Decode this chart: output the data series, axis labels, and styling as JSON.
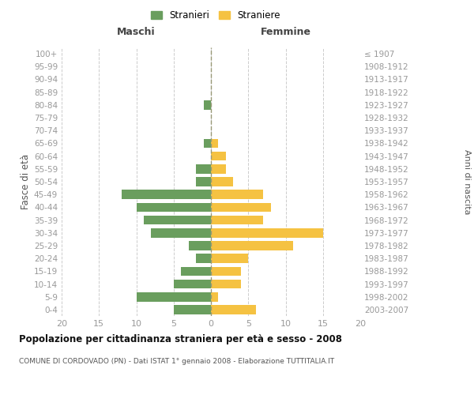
{
  "age_groups": [
    "0-4",
    "5-9",
    "10-14",
    "15-19",
    "20-24",
    "25-29",
    "30-34",
    "35-39",
    "40-44",
    "45-49",
    "50-54",
    "55-59",
    "60-64",
    "65-69",
    "70-74",
    "75-79",
    "80-84",
    "85-89",
    "90-94",
    "95-99",
    "100+"
  ],
  "birth_years": [
    "2003-2007",
    "1998-2002",
    "1993-1997",
    "1988-1992",
    "1983-1987",
    "1978-1982",
    "1973-1977",
    "1968-1972",
    "1963-1967",
    "1958-1962",
    "1953-1957",
    "1948-1952",
    "1943-1947",
    "1938-1942",
    "1933-1937",
    "1928-1932",
    "1923-1927",
    "1918-1922",
    "1913-1917",
    "1908-1912",
    "≤ 1907"
  ],
  "males": [
    5,
    10,
    5,
    4,
    2,
    3,
    8,
    9,
    10,
    12,
    2,
    2,
    0,
    1,
    0,
    0,
    1,
    0,
    0,
    0,
    0
  ],
  "females": [
    6,
    1,
    4,
    4,
    5,
    11,
    15,
    7,
    8,
    7,
    3,
    2,
    2,
    1,
    0,
    0,
    0,
    0,
    0,
    0,
    0
  ],
  "male_color": "#6a9e5e",
  "female_color": "#f5c242",
  "background_color": "#ffffff",
  "grid_color": "#cccccc",
  "title": "Popolazione per cittadinanza straniera per età e sesso - 2008",
  "subtitle": "COMUNE DI CORDOVADO (PN) - Dati ISTAT 1° gennaio 2008 - Elaborazione TUTTITALIA.IT",
  "xlabel_left": "Maschi",
  "xlabel_right": "Femmine",
  "ylabel_left": "Fasce di età",
  "ylabel_right": "Anni di nascita",
  "legend_male": "Stranieri",
  "legend_female": "Straniere",
  "xlim": 20,
  "tick_color": "#999999",
  "dashed_line_color": "#999977"
}
